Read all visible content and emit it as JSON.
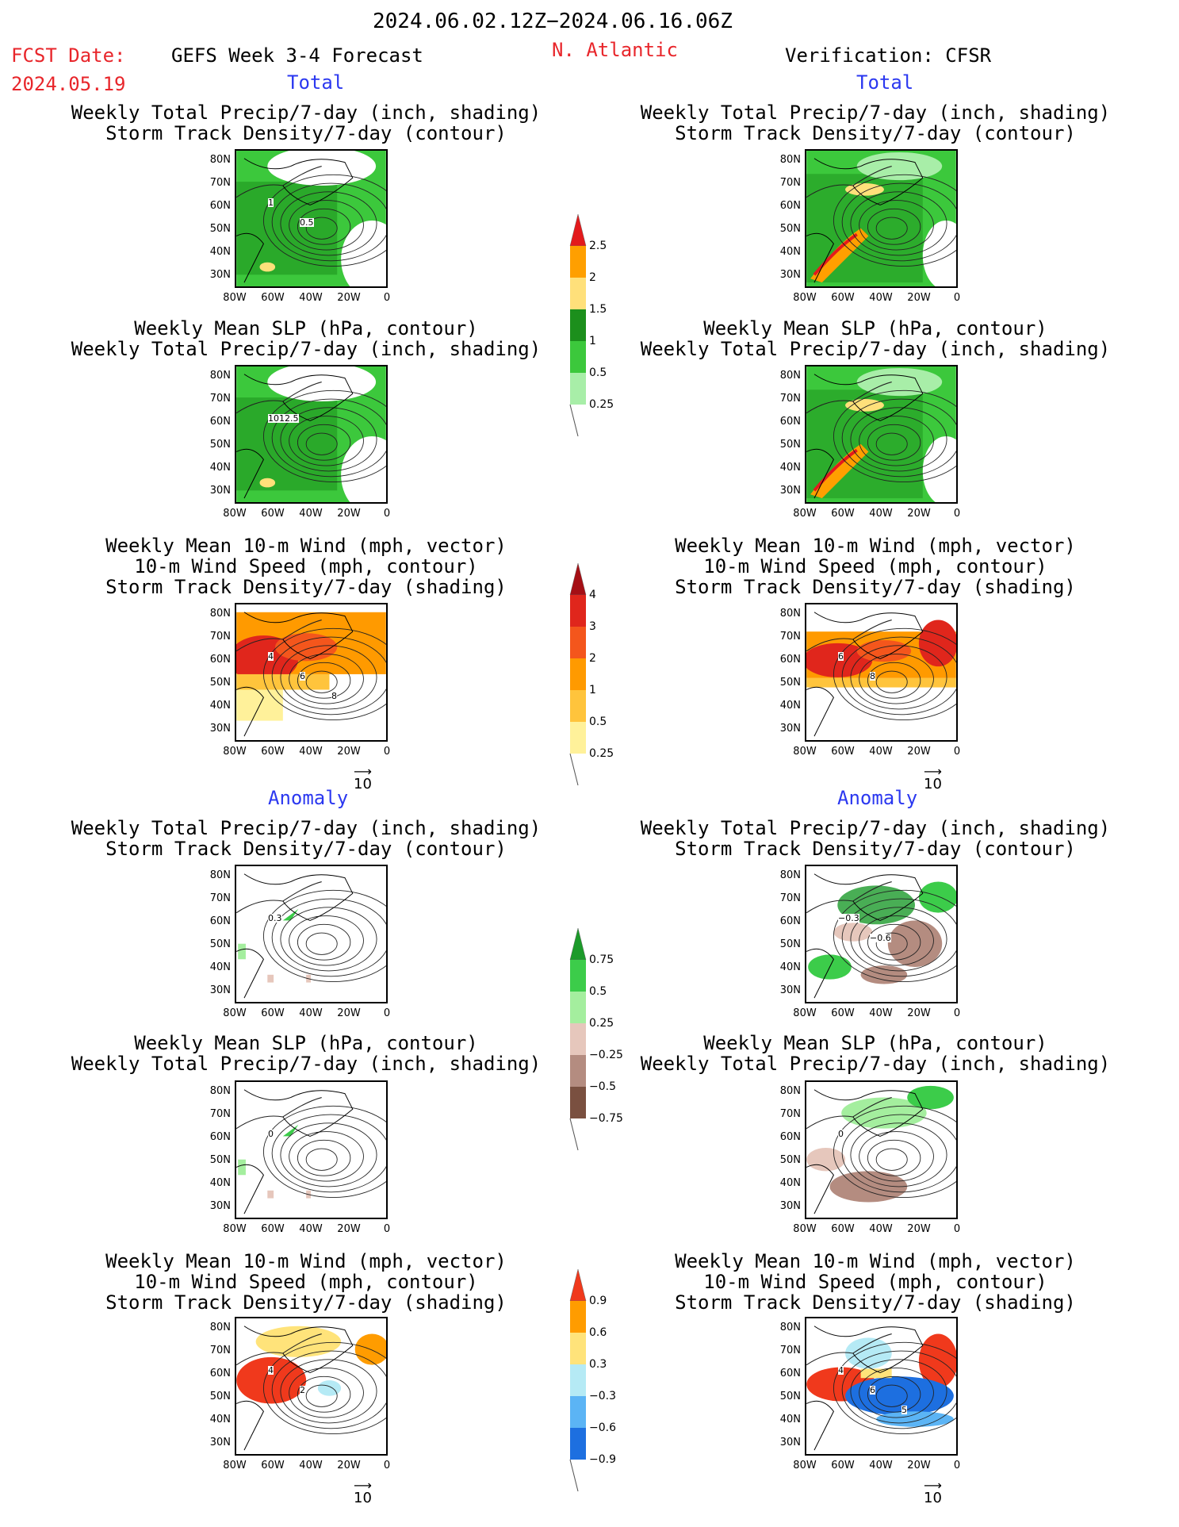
{
  "header": {
    "date_range": "2024.06.02.12Z−2024.06.16.06Z",
    "fcst_label": "FCST Date:",
    "fcst_date": "2024.05.19",
    "model": "GEFS Week 3-4 Forecast",
    "region": "N. Atlantic",
    "verification": "Verification: CFSR",
    "total_label": "Total",
    "anomaly_label": "Anomaly"
  },
  "titles": {
    "precip_storm": [
      "Weekly Total Precip/7-day (inch, shading)",
      "Storm Track Density/7-day (contour)"
    ],
    "slp_precip": [
      "Weekly Mean SLP (hPa, contour)",
      "Weekly Total Precip/7-day (inch, shading)"
    ],
    "wind_storm": [
      "Weekly Mean 10-m Wind (mph, vector)",
      "10-m Wind Speed (mph, contour)",
      "Storm Track Density/7-day (shading)"
    ]
  },
  "axes": {
    "lat_ticks": [
      "80N",
      "70N",
      "60N",
      "50N",
      "40N",
      "30N"
    ],
    "lon_ticks": [
      "80W",
      "60W",
      "40W",
      "20W",
      "0"
    ],
    "vector_ref": "10"
  },
  "colorbars": {
    "precip_total": {
      "labels": [
        "2.5",
        "2",
        "1.5",
        "1",
        "0.5",
        "0.25"
      ],
      "colors": [
        "#e31a1c",
        "#ff9f00",
        "#ffe07a",
        "#1c8f1c",
        "#3cc83c",
        "#a8eea8"
      ]
    },
    "storm_total": {
      "labels": [
        "4",
        "3",
        "2",
        "1",
        "0.5",
        "0.25"
      ],
      "colors": [
        "#a50f15",
        "#e0261c",
        "#f4561c",
        "#ff9a00",
        "#ffc43c",
        "#fff19a"
      ]
    },
    "precip_anom": {
      "labels": [
        "0.75",
        "0.5",
        "0.25",
        "−0.25",
        "−0.5",
        "−0.75"
      ],
      "colors": [
        "#1c9a2a",
        "#3ccc4a",
        "#a4ee9e",
        "#e6c7bc",
        "#b48c80",
        "#7a5040"
      ]
    },
    "storm_anom": {
      "labels": [
        "0.9",
        "0.6",
        "0.3",
        "−0.3",
        "−0.6",
        "−0.9"
      ],
      "colors": [
        "#f0391c",
        "#ff9c00",
        "#ffe37a",
        "#b5eaf5",
        "#5bb4f5",
        "#1d6fe0"
      ]
    }
  },
  "contour_labels": {
    "p1_total_storm": [
      "1",
      "0.5"
    ],
    "p2_total_slp": [
      "1012.5"
    ],
    "p3_total_wind": [
      "4",
      "6",
      "8"
    ],
    "p4_total_storm_cfsr": [],
    "p6_total_wind_cfsr": [
      "6",
      "8"
    ],
    "p7_anom_storm": [
      "0.3"
    ],
    "p8_anom_storm_cfsr": [
      "−0.3",
      "−0.6"
    ],
    "p9_anom_slp": [
      "0"
    ],
    "p10_anom_slp_cfsr": [
      "0"
    ],
    "p11_anom_wind": [
      "4",
      "2"
    ],
    "p12_anom_wind_cfsr": [
      "4",
      "6",
      "5"
    ]
  }
}
